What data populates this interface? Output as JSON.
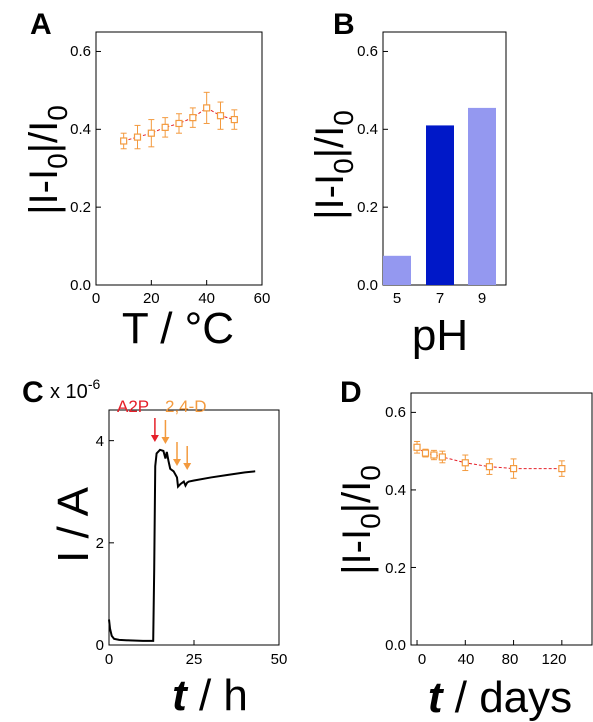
{
  "colors": {
    "orange": "#f39a3e",
    "red": "#e5202a",
    "bar_light": "#9498f0",
    "bar_dark": "#0018c8",
    "line": "#000000"
  },
  "panels": {
    "A": {
      "letter": "A",
      "ylabel_main": "|I-I",
      "ylabel_sub1": "0",
      "ylabel_mid": "|/I",
      "ylabel_sub2": "0",
      "xlabel": "T / °C",
      "xticks": [
        "0",
        "20",
        "40",
        "60"
      ],
      "yticks": [
        "0.0",
        "0.2",
        "0.4",
        "0.6"
      ]
    },
    "B": {
      "letter": "B",
      "ylabel_main": "|I-I",
      "ylabel_sub1": "0",
      "ylabel_mid": "|/I",
      "ylabel_sub2": "0",
      "xlabel": "pH",
      "xticks": [
        "5",
        "7",
        "9"
      ],
      "yticks": [
        "0.0",
        "0.2",
        "0.4",
        "0.6"
      ]
    },
    "C": {
      "letter": "C",
      "scale_prefix": "x 10",
      "scale_exp": "-6",
      "ylabel": "I / A",
      "xlabel_italic": "t",
      "xlabel_rest": " / h",
      "xticks": [
        "0",
        "25",
        "50"
      ],
      "yticks": [
        "0",
        "2",
        "4"
      ],
      "annot_a2p": "A2P",
      "annot_24d": "2,4-D"
    },
    "D": {
      "letter": "D",
      "ylabel_main": "|I-I",
      "ylabel_sub1": "0",
      "ylabel_mid": "|/I",
      "ylabel_sub2": "0",
      "xlabel_italic": "t",
      "xlabel_rest": " / days",
      "xticks": [
        "0",
        "40",
        "80",
        "120"
      ],
      "yticks": [
        "0.0",
        "0.2",
        "0.4",
        "0.6"
      ]
    }
  },
  "chart_data": [
    {
      "panel": "A",
      "type": "scatter",
      "xlim": [
        0,
        60
      ],
      "ylim": [
        0,
        0.65
      ],
      "x": [
        10,
        15,
        20,
        25,
        30,
        35,
        40,
        45,
        50
      ],
      "y": [
        0.37,
        0.38,
        0.39,
        0.405,
        0.415,
        0.43,
        0.455,
        0.435,
        0.425
      ],
      "err": [
        0.02,
        0.03,
        0.035,
        0.025,
        0.025,
        0.025,
        0.04,
        0.035,
        0.025
      ],
      "connected": true,
      "grid": false
    },
    {
      "panel": "B",
      "type": "bar",
      "categories": [
        "5",
        "7",
        "9"
      ],
      "values": [
        0.075,
        0.41,
        0.455
      ],
      "ylim": [
        0,
        0.65
      ],
      "grid": false
    },
    {
      "panel": "C",
      "type": "line",
      "xlim": [
        0,
        50
      ],
      "ylim": [
        0,
        4.6
      ],
      "y_multiplier": "1e-6",
      "x": [
        0,
        0.3,
        0.8,
        1.5,
        3,
        6,
        10,
        13,
        13.3,
        13.6,
        14,
        15,
        16,
        16.6,
        17,
        17.5,
        18,
        19,
        20,
        20.3,
        21,
        22,
        22.5,
        23,
        23.5,
        25,
        30,
        35,
        40,
        43
      ],
      "y": [
        0.5,
        0.32,
        0.18,
        0.12,
        0.1,
        0.09,
        0.08,
        0.08,
        1.5,
        3.5,
        3.75,
        3.82,
        3.8,
        3.65,
        3.78,
        3.6,
        3.45,
        3.4,
        3.28,
        3.1,
        3.15,
        3.2,
        3.12,
        3.18,
        3.2,
        3.22,
        3.28,
        3.33,
        3.38,
        3.4
      ],
      "annotations": [
        {
          "label": "A2P",
          "x": 13.5
        },
        {
          "label": "2,4-D",
          "x": 16.6
        },
        {
          "label": "2,4-D",
          "x": 20
        },
        {
          "label": "2,4-D",
          "x": 23
        }
      ],
      "grid": false
    },
    {
      "panel": "D",
      "type": "scatter",
      "xlim": [
        -5,
        145
      ],
      "ylim": [
        0,
        0.65
      ],
      "x": [
        0,
        7,
        14,
        21,
        40,
        60,
        80,
        120
      ],
      "y": [
        0.51,
        0.495,
        0.49,
        0.485,
        0.47,
        0.46,
        0.455,
        0.455
      ],
      "err": [
        0.015,
        0.01,
        0.012,
        0.015,
        0.02,
        0.02,
        0.025,
        0.02
      ],
      "connected": true,
      "grid": false
    }
  ]
}
